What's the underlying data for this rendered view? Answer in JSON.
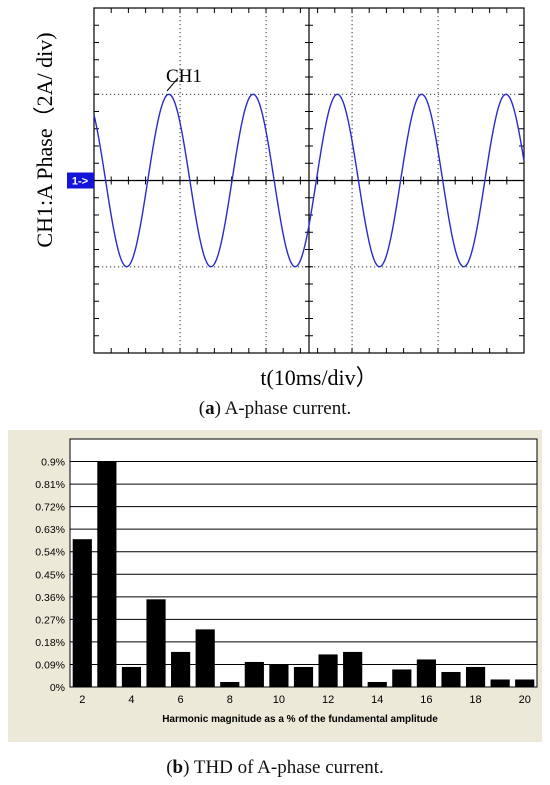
{
  "figure_a": {
    "caption_label": "a",
    "caption_text": " A-phase current.",
    "trace_label": "CH1",
    "channel_marker": "1->",
    "ylabel": "CH1:A  Phase（2A/ div)",
    "xlabel": "t(10ms/div）",
    "colors": {
      "trace": "#2a2ad0",
      "grid": "#000000"
    }
  },
  "figure_b": {
    "caption_label": "b",
    "caption_text": " THD of A-phase current.",
    "colors": {
      "panel": "#ece9d8",
      "bar": "#000000"
    }
  },
  "chart_data": [
    {
      "type": "line",
      "title": "",
      "xlabel": "t(10ms/div）",
      "ylabel": "CH1:A  Phase（2A/ div)",
      "x_divisions": 5,
      "y_divisions": 4,
      "grid": true,
      "series": [
        {
          "name": "CH1",
          "waveform": "sine",
          "amplitude_div": 1.0,
          "period_div": 0.98,
          "first_peak_div": 0.87
        }
      ]
    },
    {
      "type": "bar",
      "title": "",
      "xlabel": "Harmonic magnitude as a % of the fundamental amplitude",
      "ylabel": "",
      "ylim": [
        0,
        0.99
      ],
      "yticks": [
        "0%",
        "0.09%",
        "0.18%",
        "0.27%",
        "0.36%",
        "0.45%",
        "0.54%",
        "0.63%",
        "0.72%",
        "0.81%",
        "0.9%"
      ],
      "xticks": [
        "2",
        "4",
        "6",
        "8",
        "10",
        "12",
        "14",
        "16",
        "18",
        "20"
      ],
      "grid": true,
      "categories": [
        2,
        3,
        4,
        5,
        6,
        7,
        8,
        9,
        10,
        11,
        12,
        13,
        14,
        15,
        16,
        17,
        18,
        19,
        20
      ],
      "values": [
        0.59,
        0.9,
        0.08,
        0.35,
        0.14,
        0.23,
        0.02,
        0.1,
        0.09,
        0.08,
        0.13,
        0.14,
        0.02,
        0.07,
        0.11,
        0.06,
        0.08,
        0.03,
        0.03
      ]
    }
  ]
}
